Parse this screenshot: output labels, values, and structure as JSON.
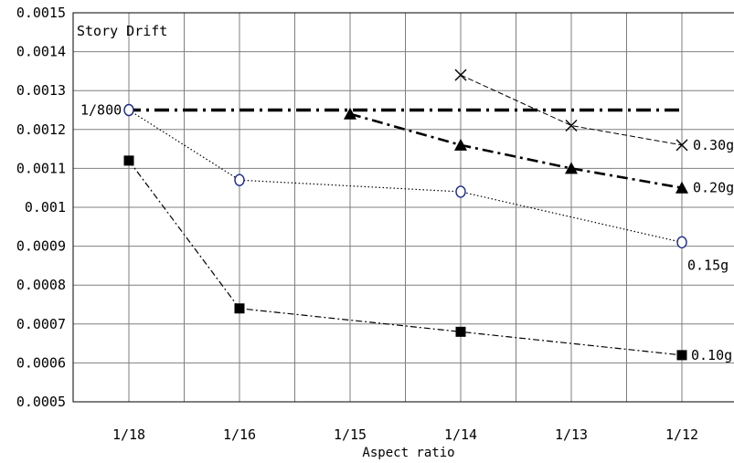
{
  "chart_data": {
    "type": "line",
    "title": "",
    "plot_label": "Story Drift",
    "xlabel": "Aspect ratio",
    "ylabel": "",
    "categories": [
      "1/18",
      "1/16",
      "1/15",
      "1/14",
      "1/13",
      "1/12"
    ],
    "ylim": [
      0.0005,
      0.0015
    ],
    "yticks": [
      "0.0005",
      "0.0006",
      "0.0007",
      "0.0008",
      "0.0009",
      "0.001",
      "0.0011",
      "0.0012",
      "0.0013",
      "0.0014",
      "0.0015"
    ],
    "grid": true,
    "reference_line": {
      "label": "1/800",
      "value": 0.00125
    },
    "series": [
      {
        "name": "0.10g",
        "marker": "filled-square",
        "line": "dash-dot-thin",
        "values": [
          0.00112,
          0.00074,
          null,
          0.00068,
          null,
          0.00062
        ]
      },
      {
        "name": "0.15g",
        "marker": "open-circle",
        "line": "dotted",
        "values": [
          0.00125,
          0.00107,
          null,
          0.00104,
          null,
          0.00091
        ]
      },
      {
        "name": "0.20g",
        "marker": "filled-triangle",
        "line": "dash-dot-thick",
        "values": [
          null,
          null,
          0.00124,
          0.00116,
          0.0011,
          0.00105
        ]
      },
      {
        "name": "0.30g",
        "marker": "x",
        "line": "dashed-thin",
        "values": [
          null,
          null,
          null,
          0.00134,
          0.00121,
          0.00116
        ]
      }
    ],
    "colors": {
      "circle_stroke": "#1c2a8c",
      "grid": "#7f7f7f",
      "ink": "#000000"
    }
  }
}
